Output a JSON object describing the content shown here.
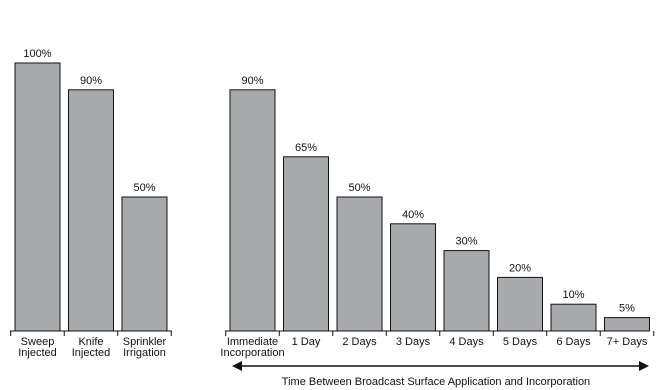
{
  "chart_data": {
    "type": "bar",
    "title": "",
    "xlabel": "Time Between Broadcast Surface Application and Incorporation",
    "ylabel": "",
    "ylim": [
      0,
      100
    ],
    "grid": false,
    "groups": [
      {
        "categories": [
          [
            "Sweep",
            "Injected"
          ],
          [
            "Knife",
            "Injected"
          ],
          [
            "Sprinkler",
            "Irrigation"
          ]
        ],
        "values": [
          100,
          90,
          50
        ],
        "labels": [
          "100%",
          "90%",
          "50%"
        ]
      },
      {
        "categories": [
          [
            "Immediate",
            "Incorporation"
          ],
          [
            "1 Day"
          ],
          [
            "2 Days"
          ],
          [
            "3 Days"
          ],
          [
            "4 Days"
          ],
          [
            "5 Days"
          ],
          [
            "6 Days"
          ],
          [
            "7+ Days"
          ]
        ],
        "values": [
          90,
          65,
          50,
          40,
          30,
          20,
          10,
          5
        ],
        "labels": [
          "90%",
          "65%",
          "50%",
          "40%",
          "30%",
          "20%",
          "10%",
          "5%"
        ]
      }
    ]
  }
}
